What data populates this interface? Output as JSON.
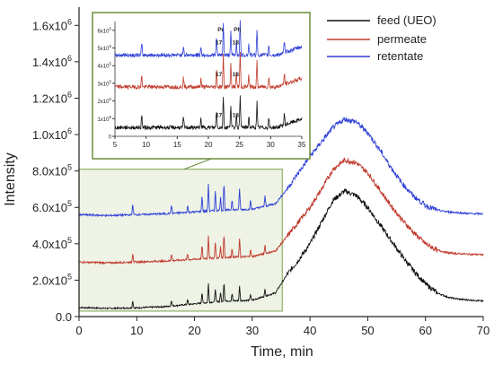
{
  "chart_data": {
    "type": "line",
    "xlabel": "Time, min",
    "ylabel": "Intensity",
    "xlim": [
      0,
      70
    ],
    "ylim": [
      0,
      1700000
    ],
    "x_ticks": [
      "0",
      "10",
      "20",
      "30",
      "40",
      "50",
      "60",
      "70"
    ],
    "y_ticks": [
      {
        "base": "0.0",
        "exp": ""
      },
      {
        "base": "2.0x10",
        "exp": "5"
      },
      {
        "base": "4.0x10",
        "exp": "5"
      },
      {
        "base": "6.0x10",
        "exp": "5"
      },
      {
        "base": "8.0x10",
        "exp": "5"
      },
      {
        "base": "1.0x10",
        "exp": "6"
      },
      {
        "base": "1.2x10",
        "exp": "6"
      },
      {
        "base": "1.4x10",
        "exp": "6"
      },
      {
        "base": "1.6x10",
        "exp": "6"
      }
    ],
    "legend_position": "top-right",
    "series": [
      {
        "name": "feed (UEO)",
        "color": "#111111",
        "x": [
          0,
          5,
          10,
          15,
          20,
          25,
          30,
          34,
          36,
          38,
          40,
          42,
          44,
          46,
          48,
          50,
          52,
          54,
          56,
          58,
          60,
          62,
          64,
          66,
          68,
          70
        ],
        "y": [
          50000,
          45000,
          48000,
          55000,
          70000,
          85000,
          90000,
          130000,
          230000,
          310000,
          400000,
          520000,
          640000,
          690000,
          665000,
          600000,
          510000,
          420000,
          330000,
          250000,
          180000,
          130000,
          105000,
          95000,
          90000,
          85000
        ]
      },
      {
        "name": "permeate",
        "color": "#c0392b",
        "x": [
          0,
          5,
          10,
          15,
          20,
          25,
          30,
          34,
          36,
          38,
          40,
          42,
          44,
          46,
          48,
          50,
          52,
          54,
          56,
          58,
          60,
          62,
          64,
          66,
          68,
          70
        ],
        "y": [
          300000,
          295000,
          300000,
          305000,
          315000,
          325000,
          330000,
          360000,
          440000,
          520000,
          600000,
          700000,
          810000,
          860000,
          845000,
          790000,
          700000,
          610000,
          530000,
          460000,
          400000,
          365000,
          350000,
          345000,
          342000,
          340000
        ]
      },
      {
        "name": "retentate",
        "color": "#2e3fd6",
        "x": [
          0,
          5,
          10,
          15,
          20,
          25,
          30,
          34,
          36,
          38,
          40,
          42,
          44,
          46,
          48,
          50,
          52,
          54,
          56,
          58,
          60,
          62,
          64,
          66,
          68,
          70
        ],
        "y": [
          560000,
          555000,
          560000,
          565000,
          575000,
          585000,
          590000,
          620000,
          700000,
          790000,
          880000,
          960000,
          1040000,
          1085000,
          1070000,
          1010000,
          920000,
          820000,
          730000,
          660000,
          610000,
          585000,
          575000,
          570000,
          565000,
          565000
        ]
      }
    ],
    "peaks": [
      {
        "x": 9.3,
        "h": 60000
      },
      {
        "x": 16.0,
        "h": 50000
      },
      {
        "x": 18.8,
        "h": 40000
      },
      {
        "x": 21.3,
        "h": 90000
      },
      {
        "x": 22.4,
        "h": 150000
      },
      {
        "x": 23.6,
        "h": 110000
      },
      {
        "x": 24.5,
        "h": 70000
      },
      {
        "x": 25.1,
        "h": 160000
      },
      {
        "x": 26.5,
        "h": 60000
      },
      {
        "x": 27.8,
        "h": 120000
      },
      {
        "x": 29.7,
        "h": 50000
      },
      {
        "x": 32.2,
        "h": 55000
      }
    ],
    "highlight_region": {
      "x": [
        0,
        35.2
      ],
      "y": [
        30000,
        810000
      ]
    },
    "inset": {
      "xlim": [
        5,
        35
      ],
      "x_ticks": [
        "5",
        "10",
        "15",
        "20",
        "25",
        "30",
        "35"
      ],
      "y_ticks": [
        {
          "base": "0",
          "exp": ""
        },
        {
          "base": "1x10",
          "exp": "5"
        },
        {
          "base": "2x10",
          "exp": "5"
        },
        {
          "base": "3x10",
          "exp": "5"
        },
        {
          "base": "4x10",
          "exp": "5"
        },
        {
          "base": "5x10",
          "exp": "5"
        },
        {
          "base": "6x10",
          "exp": "5"
        }
      ],
      "ylim": [
        0,
        650000
      ],
      "baselines": [
        50000,
        280000,
        460000
      ],
      "peak_labels": [
        {
          "text": "17",
          "x": 22.4
        },
        {
          "text": "Pr",
          "x": 22.4
        },
        {
          "text": "18",
          "x": 25.1
        },
        {
          "text": "Ph",
          "x": 25.1
        }
      ]
    }
  }
}
